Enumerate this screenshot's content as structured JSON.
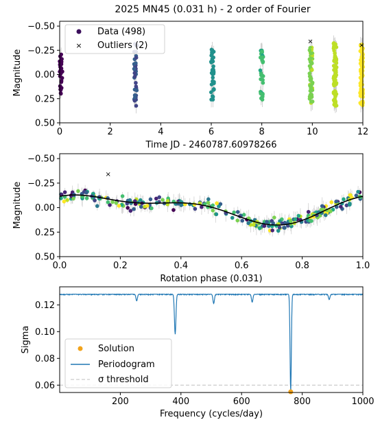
{
  "chart_data": [
    {
      "type": "scatter",
      "title": "2025 MN45 (0.031 h) - 2 order of Fourier",
      "xlabel": "Time JD - 2460787.60978266",
      "ylabel": "Magnitude",
      "xlim": [
        0,
        12
      ],
      "ylim": [
        0.5,
        -0.55
      ],
      "y_inverted": true,
      "xticks": [
        "0",
        "2",
        "4",
        "6",
        "8",
        "10",
        "12"
      ],
      "yticks": [
        "−0.50",
        "−0.25",
        "0.00",
        "0.25",
        "0.50"
      ],
      "legend": {
        "placement": "top-left",
        "entries": [
          "Data (498)",
          "Outliers (2)"
        ]
      },
      "series": [
        {
          "name": "Data (498)",
          "marker": "circle",
          "colormap": "viridis",
          "clusters": [
            {
              "x": 0.05,
              "ymin": -0.25,
              "ymax": 0.22
            },
            {
              "x": 3.0,
              "ymin": -0.32,
              "ymax": 0.33
            },
            {
              "x": 6.05,
              "ymin": -0.28,
              "ymax": 0.27
            },
            {
              "x": 8.0,
              "ymin": -0.25,
              "ymax": 0.3
            },
            {
              "x": 9.95,
              "ymin": -0.29,
              "ymax": 0.3
            },
            {
              "x": 10.9,
              "ymin": -0.35,
              "ymax": 0.35
            },
            {
              "x": 11.95,
              "ymin": -0.32,
              "ymax": 0.33
            }
          ]
        },
        {
          "name": "Outliers (2)",
          "marker": "x",
          "points": [
            {
              "x": 9.92,
              "y": -0.34
            },
            {
              "x": 11.95,
              "y": -0.3
            }
          ]
        }
      ]
    },
    {
      "type": "scatter",
      "xlabel": "Rotation phase (0.031)",
      "ylabel": "Magnitude",
      "xlim": [
        0,
        1
      ],
      "ylim": [
        0.5,
        -0.55
      ],
      "y_inverted": true,
      "xticks": [
        "0.0",
        "0.2",
        "0.4",
        "0.6",
        "0.8",
        "1.0"
      ],
      "yticks": [
        "−0.50",
        "−0.25",
        "0.00",
        "0.25",
        "0.50"
      ],
      "fit": {
        "order": 2,
        "a0": 0.0,
        "a1": -0.11,
        "b1": -0.055,
        "a2": 0.01,
        "b2": -0.06
      },
      "outliers": [
        {
          "x": 0.16,
          "y": -0.34
        }
      ]
    },
    {
      "type": "line",
      "xlabel": "Frequency (cycles/day)",
      "ylabel": "Sigma",
      "xlim": [
        0,
        1000
      ],
      "ylim": [
        0.0545,
        0.1335
      ],
      "xticks": [
        "200",
        "400",
        "600",
        "800",
        "1000"
      ],
      "yticks": [
        "0.06",
        "0.08",
        "0.10",
        "0.12"
      ],
      "legend": {
        "placement": "bottom-left",
        "entries": [
          "Solution",
          "Periodogram",
          "σ threshold"
        ]
      },
      "baseline": 0.128,
      "dips": [
        {
          "x": 762,
          "y": 0.055
        },
        {
          "x": 381,
          "y": 0.098
        },
        {
          "x": 254,
          "y": 0.123
        },
        {
          "x": 508,
          "y": 0.121
        },
        {
          "x": 635,
          "y": 0.122
        },
        {
          "x": 889,
          "y": 0.124
        }
      ],
      "threshold": 0.06,
      "solution": {
        "x": 762,
        "y": 0.055
      }
    }
  ],
  "colors": {
    "periodogram": "#1f77b4",
    "solution": "#f2a31b",
    "outlier": "#9b8ec4",
    "fit": "#000000",
    "threshold": "#bfbfbf"
  }
}
